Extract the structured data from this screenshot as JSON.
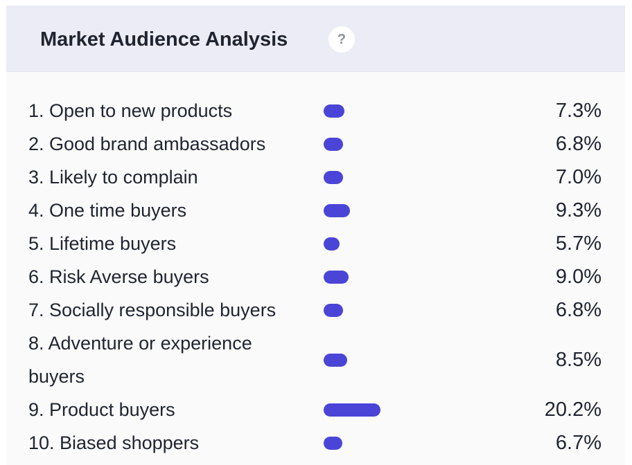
{
  "header": {
    "title": "Market Audience Analysis",
    "help_icon": "question-icon",
    "help_label": "?"
  },
  "colors": {
    "header_bg": "#ececf6",
    "bar": "#4a45d6",
    "text": "#1f2430"
  },
  "chart_data": {
    "type": "bar",
    "orientation": "horizontal",
    "categories": [
      "1. Open to new products",
      "2. Good brand ambassadors",
      "3. Likely to complain",
      "4. One time buyers",
      "5. Lifetime buyers",
      "6. Risk Averse buyers",
      "7. Socially responsible buyers",
      "8. Adventure or experience buyers",
      "9. Product buyers",
      "10. Biased shoppers"
    ],
    "values": [
      7.3,
      6.8,
      7.0,
      9.3,
      5.7,
      9.0,
      6.8,
      8.5,
      20.2,
      6.7
    ],
    "value_labels": [
      "7.3%",
      "6.8%",
      "7.0%",
      "9.3%",
      "5.7%",
      "9.0%",
      "6.8%",
      "8.5%",
      "20.2%",
      "6.7%"
    ],
    "unit": "%",
    "grid": false,
    "legend": "none"
  }
}
